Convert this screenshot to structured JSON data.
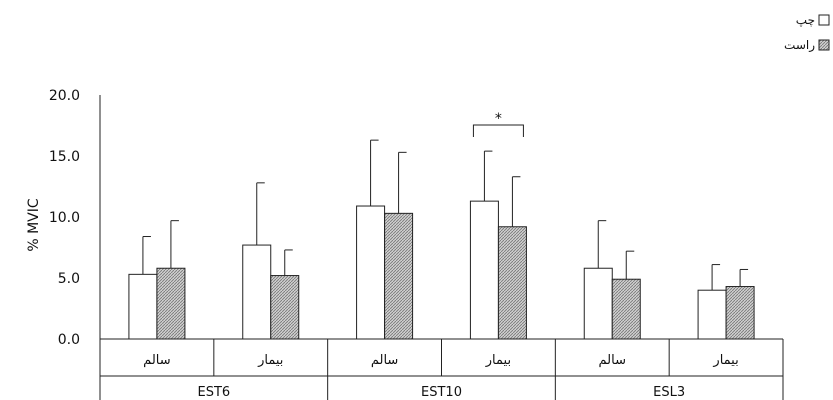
{
  "chart_data": {
    "type": "bar",
    "ylabel": "% MVIC",
    "ylim": [
      0,
      20
    ],
    "yticks": [
      "0.0",
      "5.0",
      "10.0",
      "15.0",
      "20.0"
    ],
    "groups": [
      "EST6",
      "EST10",
      "ESL3"
    ],
    "subcategories": [
      "سالم",
      "بیمار",
      "سالم",
      "بیمار",
      "سالم",
      "بیمار"
    ],
    "series": [
      {
        "name": "چپ",
        "values": [
          5.3,
          7.7,
          10.9,
          11.3,
          5.8,
          4.0
        ],
        "errors": [
          3.1,
          5.1,
          5.4,
          4.1,
          3.9,
          2.1
        ],
        "fill": "#ffffff"
      },
      {
        "name": "راست",
        "values": [
          5.8,
          5.2,
          10.3,
          9.2,
          4.9,
          4.3
        ],
        "errors": [
          3.9,
          2.1,
          5.0,
          4.1,
          2.3,
          1.4
        ],
        "fill": "#bdbdbd"
      }
    ],
    "annotations": [
      {
        "text": "*",
        "subcategory_index": 3
      }
    ],
    "grid": false,
    "legend": "top-right"
  }
}
